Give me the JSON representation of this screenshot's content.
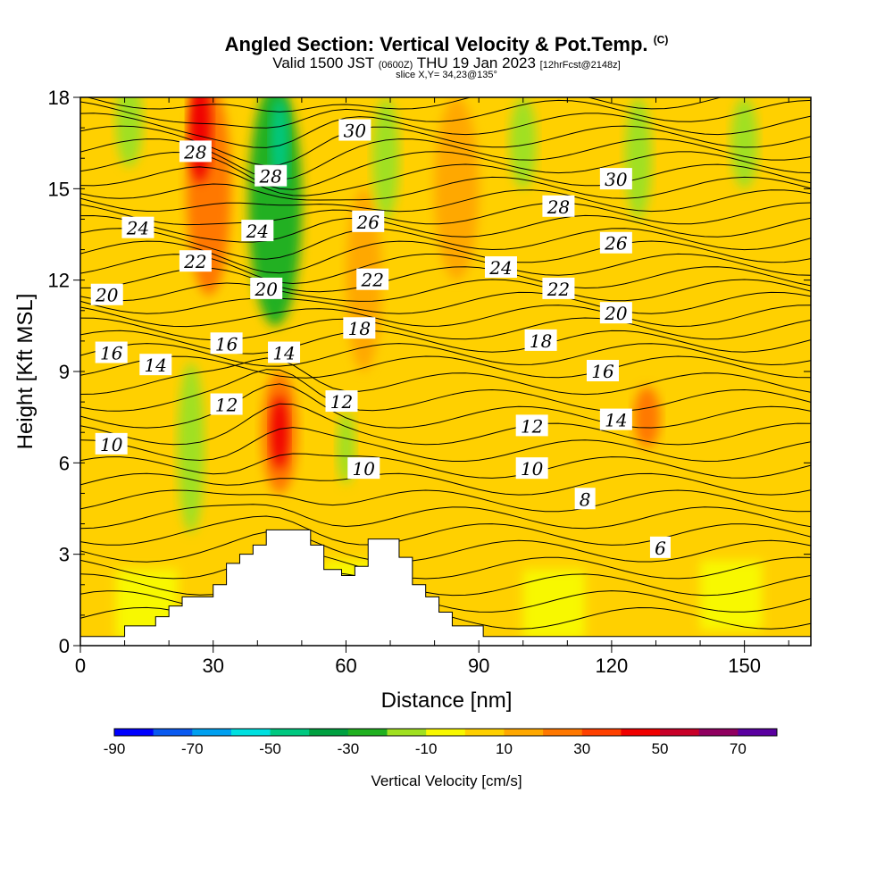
{
  "title": {
    "main": "Angled Section: Vertical Velocity & Pot.Temp.",
    "mark": "(C)",
    "valid_prefix": "Valid 1500 JST",
    "zulu": "(0600Z)",
    "valid_day": "THU 19 Jan 2023",
    "fcst": "[12hrFcst@2148z]",
    "slice": "slice X,Y= 34,23@135°"
  },
  "chart_data": {
    "type": "heatmap",
    "xlabel": "Distance [nm]",
    "ylabel": "Height [Kft MSL]",
    "xlim": [
      0,
      165
    ],
    "ylim": [
      0,
      18
    ],
    "xticks": [
      0,
      30,
      60,
      90,
      120,
      150
    ],
    "yticks": [
      0,
      3,
      6,
      9,
      12,
      15,
      18
    ],
    "colorbar": {
      "label": "Vertical Velocity [cm/s]",
      "bounds": [
        -90,
        80
      ],
      "step": 10,
      "tick_labels": [
        -90,
        -70,
        -50,
        -30,
        -10,
        10,
        30,
        50,
        70
      ],
      "colors": [
        "#0000ff",
        "#0a5af0",
        "#00a0f0",
        "#00e0e0",
        "#00c880",
        "#00a040",
        "#20b020",
        "#a0e020",
        "#f8f800",
        "#ffd000",
        "#ffa800",
        "#ff7800",
        "#ff4000",
        "#f00000",
        "#c80028",
        "#900060",
        "#5a00a0"
      ]
    },
    "background_band_color": "#f8f800",
    "velocity_regions": [
      {
        "x": 11,
        "y": 17.2,
        "rx": 3,
        "ry": 1.5,
        "value": -15
      },
      {
        "x": 29,
        "y": 15.0,
        "rx": 5,
        "ry": 3.5,
        "value": 25
      },
      {
        "x": 27,
        "y": 17.0,
        "rx": 2.5,
        "ry": 1.8,
        "value": 45
      },
      {
        "x": 44,
        "y": 14.5,
        "rx": 6,
        "ry": 4.0,
        "value": -25
      },
      {
        "x": 45,
        "y": 16.5,
        "rx": 2,
        "ry": 1.5,
        "value": -45
      },
      {
        "x": 64,
        "y": 12.0,
        "rx": 4,
        "ry": 3.0,
        "value": 15
      },
      {
        "x": 69,
        "y": 16.0,
        "rx": 3,
        "ry": 2.0,
        "value": -15
      },
      {
        "x": 85,
        "y": 15.0,
        "rx": 5,
        "ry": 3.0,
        "value": 15
      },
      {
        "x": 100,
        "y": 16.5,
        "rx": 3,
        "ry": 1.5,
        "value": -15
      },
      {
        "x": 126,
        "y": 16.0,
        "rx": 3,
        "ry": 2.0,
        "value": -15
      },
      {
        "x": 150,
        "y": 16.5,
        "rx": 3,
        "ry": 1.5,
        "value": -15
      },
      {
        "x": 25,
        "y": 6.5,
        "rx": 3,
        "ry": 2.8,
        "value": -15
      },
      {
        "x": 45,
        "y": 7.0,
        "rx": 4,
        "ry": 2.0,
        "value": 25
      },
      {
        "x": 45,
        "y": 7.0,
        "rx": 2,
        "ry": 1.2,
        "value": 45
      },
      {
        "x": 60,
        "y": 6.5,
        "rx": 2,
        "ry": 1.2,
        "value": -15
      },
      {
        "x": 128,
        "y": 7.5,
        "rx": 3,
        "ry": 1.0,
        "value": 25
      }
    ],
    "theta_labels": [
      {
        "x": 7,
        "y": 6.6,
        "value": "10"
      },
      {
        "x": 33,
        "y": 7.9,
        "value": "12"
      },
      {
        "x": 17,
        "y": 9.2,
        "value": "14"
      },
      {
        "x": 7,
        "y": 9.6,
        "value": "16"
      },
      {
        "x": 33,
        "y": 9.9,
        "value": "16"
      },
      {
        "x": 46,
        "y": 9.6,
        "value": "14"
      },
      {
        "x": 6,
        "y": 11.5,
        "value": "20"
      },
      {
        "x": 42,
        "y": 11.7,
        "value": "20"
      },
      {
        "x": 26,
        "y": 12.6,
        "value": "22"
      },
      {
        "x": 13,
        "y": 13.7,
        "value": "24"
      },
      {
        "x": 40,
        "y": 13.6,
        "value": "24"
      },
      {
        "x": 26,
        "y": 16.2,
        "value": "28"
      },
      {
        "x": 43,
        "y": 15.4,
        "value": "28"
      },
      {
        "x": 62,
        "y": 16.9,
        "value": "30"
      },
      {
        "x": 65,
        "y": 13.9,
        "value": "26"
      },
      {
        "x": 66,
        "y": 12.0,
        "value": "22"
      },
      {
        "x": 63,
        "y": 10.4,
        "value": "18"
      },
      {
        "x": 59,
        "y": 8.0,
        "value": "12"
      },
      {
        "x": 64,
        "y": 5.8,
        "value": "10"
      },
      {
        "x": 95,
        "y": 12.4,
        "value": "24"
      },
      {
        "x": 108,
        "y": 14.4,
        "value": "28"
      },
      {
        "x": 121,
        "y": 15.3,
        "value": "30"
      },
      {
        "x": 121,
        "y": 13.2,
        "value": "26"
      },
      {
        "x": 108,
        "y": 11.7,
        "value": "22"
      },
      {
        "x": 121,
        "y": 10.9,
        "value": "20"
      },
      {
        "x": 104,
        "y": 10.0,
        "value": "18"
      },
      {
        "x": 118,
        "y": 9.0,
        "value": "16"
      },
      {
        "x": 121,
        "y": 7.4,
        "value": "14"
      },
      {
        "x": 102,
        "y": 7.2,
        "value": "12"
      },
      {
        "x": 102,
        "y": 5.8,
        "value": "10"
      },
      {
        "x": 114,
        "y": 4.8,
        "value": "8"
      },
      {
        "x": 131,
        "y": 3.2,
        "value": "6"
      }
    ],
    "terrain_profile": [
      [
        0,
        0.3
      ],
      [
        10,
        0.3
      ],
      [
        10,
        0.65
      ],
      [
        17,
        0.65
      ],
      [
        17,
        0.95
      ],
      [
        20,
        0.95
      ],
      [
        20,
        1.3
      ],
      [
        23,
        1.3
      ],
      [
        23,
        1.6
      ],
      [
        30,
        1.6
      ],
      [
        30,
        2.0
      ],
      [
        33,
        2.0
      ],
      [
        33,
        2.7
      ],
      [
        36,
        2.7
      ],
      [
        36,
        3.0
      ],
      [
        39,
        3.0
      ],
      [
        39,
        3.3
      ],
      [
        42,
        3.3
      ],
      [
        42,
        3.8
      ],
      [
        52,
        3.8
      ],
      [
        52,
        3.3
      ],
      [
        55,
        3.3
      ],
      [
        55,
        2.5
      ],
      [
        59,
        2.5
      ],
      [
        59,
        2.3
      ],
      [
        62,
        2.3
      ],
      [
        62,
        2.6
      ],
      [
        65,
        2.6
      ],
      [
        65,
        3.5
      ],
      [
        72,
        3.5
      ],
      [
        72,
        2.9
      ],
      [
        75,
        2.9
      ],
      [
        75,
        2.0
      ],
      [
        78,
        2.0
      ],
      [
        78,
        1.6
      ],
      [
        81,
        1.6
      ],
      [
        81,
        1.1
      ],
      [
        84,
        1.1
      ],
      [
        84,
        0.65
      ],
      [
        91,
        0.65
      ],
      [
        91,
        0.3
      ],
      [
        165,
        0.3
      ]
    ]
  }
}
